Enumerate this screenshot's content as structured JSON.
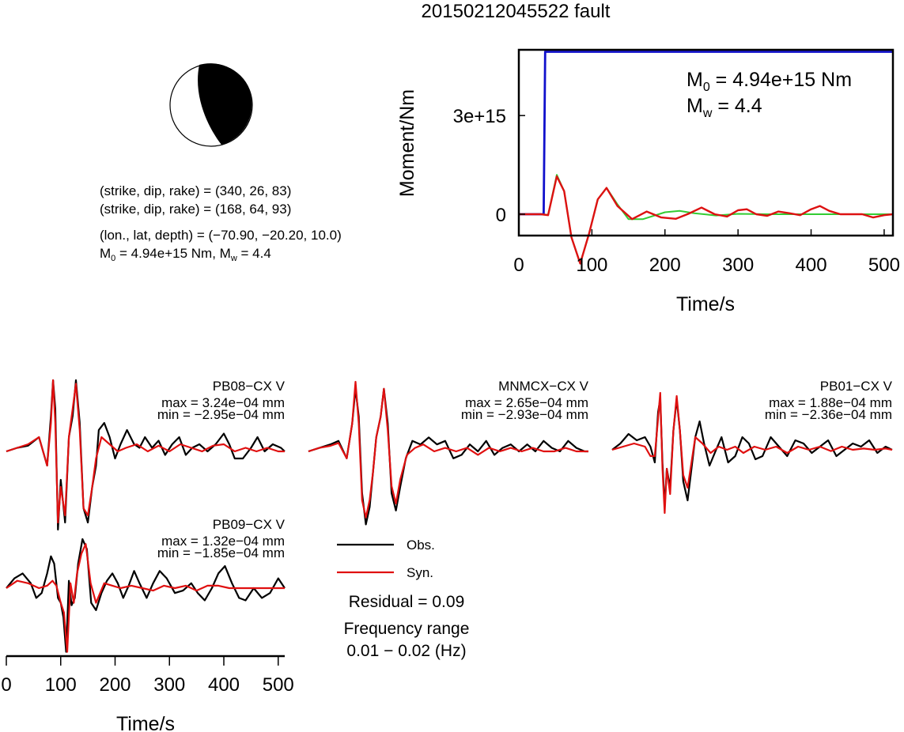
{
  "title": "20150212045522 fault",
  "mechanism": {
    "line1": "(strike, dip, rake) = (340, 26, 83)",
    "line2": "(strike, dip, rake) = (168, 64, 93)",
    "line3": "(lon., lat, depth) = (−70.90, −20.20, 10.0)",
    "m0_label": "M",
    "m0_sub": "0",
    "m0_rest": " = 4.94e+15 Nm, M",
    "mw_sub": "w",
    "mw_rest": " = 4.4"
  },
  "moment_plot": {
    "ylabel": "Moment/Nm",
    "xlabel": "Time/s",
    "m0_M": "M",
    "m0_sub": "0",
    "m0_rest": " = 4.94e+15 Nm",
    "mw_M": "M",
    "mw_sub": "w",
    "mw_rest": " = 4.4",
    "xticks": [
      "0",
      "100",
      "200",
      "300",
      "400",
      "500"
    ],
    "yticks": [
      "0",
      "3e+15"
    ]
  },
  "legend": {
    "obs": "Obs.",
    "syn": "Syn."
  },
  "residual": "Residual = 0.09",
  "frequency_title": "Frequency range",
  "frequency_value": "0.01 − 0.02 (Hz)",
  "wave_axis": {
    "xlabel": "Time/s",
    "xticks": [
      "0",
      "100",
      "200",
      "300",
      "400",
      "500"
    ]
  },
  "stations": [
    {
      "name": "PB08−CX V",
      "max": "max = 3.24e−04 mm",
      "min": "min = −2.95e−04 mm"
    },
    {
      "name": "MNMCX−CX V",
      "max": "max = 2.65e−04 mm",
      "min": "min = −2.93e−04 mm"
    },
    {
      "name": "PB01−CX V",
      "max": "max = 1.88e−04 mm",
      "min": "min = −2.36e−04 mm"
    },
    {
      "name": "PB09−CX V",
      "max": "max = 1.32e−04 mm",
      "min": "min = −1.85e−04 mm"
    }
  ],
  "chart_data": [
    {
      "type": "line",
      "title": "20150212045522 fault",
      "xlabel": "Time/s",
      "ylabel": "Moment/Nm",
      "xlim": [
        0,
        512
      ],
      "ylim": [
        -650000000000000.0,
        5000000000000000.0
      ],
      "series": [
        {
          "color": "#1010cc",
          "x": [
            0,
            34,
            36,
            512
          ],
          "y": [
            0,
            0,
            4940000000000000.0,
            4940000000000000.0
          ]
        },
        {
          "color": "#33cc33",
          "x": [
            0,
            30,
            40,
            52,
            62,
            72,
            84,
            96,
            108,
            120,
            135,
            150,
            170,
            200,
            220,
            240,
            270,
            300,
            340,
            400,
            512
          ],
          "y": [
            0,
            0,
            -20000000000000.0,
            1200000000000000.0,
            700000000000000.0,
            -700000000000000.0,
            -1500000000000000.0,
            -600000000000000.0,
            450000000000000.0,
            800000000000000.0,
            300000000000000.0,
            -150000000000000.0,
            -150000000000000.0,
            60000000000000.0,
            100000000000000.0,
            30000000000000.0,
            -40000000000000.0,
            10000000000000.0,
            0,
            0,
            0
          ]
        },
        {
          "color": "#dd1111",
          "x": [
            0,
            30,
            40,
            52,
            62,
            72,
            84,
            96,
            108,
            120,
            135,
            155,
            175,
            195,
            215,
            232,
            250,
            268,
            285,
            300,
            312,
            325,
            340,
            355,
            370,
            385,
            400,
            412,
            425,
            440,
            455,
            470,
            485,
            500,
            512
          ],
          "y": [
            0,
            0,
            -30000000000000.0,
            1150000000000000.0,
            700000000000000.0,
            -700000000000000.0,
            -1500000000000000.0,
            -600000000000000.0,
            450000000000000.0,
            800000000000000.0,
            250000000000000.0,
            -150000000000000.0,
            80000000000000.0,
            -100000000000000.0,
            -140000000000000.0,
            10000000000000.0,
            200000000000000.0,
            0,
            -70000000000000.0,
            120000000000000.0,
            150000000000000.0,
            0,
            -50000000000000.0,
            80000000000000.0,
            30000000000000.0,
            -30000000000000.0,
            150000000000000.0,
            250000000000000.0,
            100000000000000.0,
            0,
            0,
            0,
            -100000000000000.0,
            -30000000000000.0,
            0
          ]
        }
      ]
    },
    {
      "type": "line",
      "name": "PB08−CX V",
      "xlim": [
        0,
        512
      ],
      "obs": {
        "x": [
          0,
          20,
          40,
          60,
          75,
          82,
          86,
          90,
          95,
          100,
          108,
          115,
          122,
          128,
          135,
          142,
          150,
          158,
          165,
          170,
          180,
          190,
          200,
          210,
          222,
          235,
          245,
          255,
          268,
          280,
          292,
          305,
          318,
          330,
          342,
          355,
          370,
          385,
          400,
          410,
          420,
          435,
          450,
          462,
          475,
          490,
          505,
          512
        ],
        "y": [
          0,
          0.05,
          0.08,
          0.2,
          -0.2,
          0.5,
          1.0,
          0.6,
          -1.1,
          -0.4,
          -1.0,
          0.2,
          0.5,
          1.0,
          0.4,
          -0.8,
          -1.0,
          -0.5,
          -0.2,
          0.3,
          0.4,
          0.2,
          -0.1,
          0.1,
          0.3,
          0.1,
          0.05,
          0.2,
          0.05,
          0.15,
          -0.05,
          0.1,
          0.2,
          -0.05,
          0.05,
          0.1,
          0.0,
          0.1,
          0.25,
          0.1,
          -0.1,
          -0.1,
          0.05,
          0.2,
          0.0,
          0.1,
          0.05,
          0.0
        ]
      },
      "syn": {
        "x": [
          0,
          20,
          40,
          60,
          75,
          82,
          86,
          90,
          95,
          100,
          108,
          115,
          122,
          128,
          135,
          142,
          150,
          158,
          165,
          175,
          190,
          205,
          220,
          240,
          260,
          280,
          300,
          320,
          340,
          360,
          380,
          400,
          420,
          440,
          460,
          480,
          500,
          512
        ],
        "y": [
          0,
          0.05,
          0.1,
          0.2,
          -0.2,
          0.4,
          1.0,
          0.4,
          -1.0,
          -0.5,
          -0.9,
          0.2,
          0.6,
          0.95,
          0.3,
          -0.8,
          -0.9,
          -0.5,
          -0.1,
          0.2,
          0.1,
          0.0,
          0.05,
          0.1,
          0.0,
          0.08,
          0.0,
          0.1,
          0.05,
          0.0,
          0.08,
          0.1,
          0.0,
          0.05,
          0.0,
          0.05,
          0.0,
          0.0
        ]
      }
    },
    {
      "type": "line",
      "name": "MNMCX−CX V",
      "xlim": [
        0,
        512
      ],
      "obs": {
        "x": [
          0,
          20,
          40,
          55,
          70,
          80,
          86,
          92,
          98,
          105,
          112,
          118,
          124,
          132,
          138,
          145,
          152,
          160,
          168,
          178,
          190,
          205,
          220,
          235,
          250,
          265,
          280,
          295,
          310,
          325,
          340,
          355,
          370,
          385,
          400,
          415,
          430,
          445,
          460,
          475,
          490,
          505,
          512
        ],
        "y": [
          0,
          0.05,
          0.1,
          0.15,
          -0.1,
          0.4,
          0.9,
          0.5,
          -0.6,
          -1.05,
          -0.8,
          -0.3,
          0.2,
          0.5,
          0.9,
          0.4,
          -0.6,
          -0.85,
          -0.5,
          -0.1,
          0.15,
          0.1,
          0.2,
          0.1,
          0.15,
          -0.1,
          -0.05,
          0.1,
          0.0,
          0.15,
          -0.05,
          0.05,
          0.1,
          0.0,
          0.1,
          0.0,
          0.15,
          0.05,
          0.0,
          0.15,
          0.05,
          0.0,
          0.0
        ]
      },
      "syn": {
        "x": [
          0,
          20,
          40,
          55,
          70,
          80,
          86,
          92,
          98,
          105,
          112,
          118,
          124,
          132,
          138,
          145,
          152,
          160,
          168,
          180,
          195,
          210,
          230,
          250,
          270,
          290,
          310,
          330,
          350,
          370,
          390,
          410,
          430,
          450,
          470,
          490,
          512
        ],
        "y": [
          0,
          0.05,
          0.08,
          0.12,
          -0.1,
          0.4,
          1.0,
          0.4,
          -0.7,
          -0.95,
          -0.7,
          -0.3,
          0.2,
          0.5,
          0.9,
          0.3,
          -0.5,
          -0.75,
          -0.4,
          -0.05,
          0.05,
          0.1,
          0.0,
          0.05,
          0.0,
          0.05,
          -0.05,
          0.05,
          0.0,
          0.05,
          0.0,
          0.05,
          0.0,
          0.0,
          0.05,
          0.0,
          0.0
        ]
      }
    },
    {
      "type": "line",
      "name": "PB01−CX V",
      "xlim": [
        0,
        512
      ],
      "obs": {
        "x": [
          0,
          15,
          30,
          45,
          60,
          70,
          78,
          84,
          88,
          92,
          96,
          100,
          106,
          112,
          118,
          124,
          130,
          138,
          145,
          152,
          160,
          168,
          178,
          190,
          200,
          212,
          225,
          238,
          250,
          262,
          275,
          290,
          305,
          320,
          335,
          350,
          365,
          380,
          395,
          410,
          425,
          440,
          455,
          470,
          485,
          500,
          512
        ],
        "y": [
          0,
          0.1,
          0.25,
          0.15,
          0.2,
          0.05,
          -0.2,
          0.6,
          0.8,
          -0.2,
          -0.9,
          -0.3,
          -0.6,
          0.3,
          0.8,
          0.3,
          -0.5,
          -0.8,
          -0.3,
          0.2,
          0.45,
          0.1,
          -0.25,
          0.0,
          0.2,
          -0.2,
          -0.1,
          0.2,
          0.1,
          -0.15,
          -0.1,
          0.2,
          0.05,
          -0.1,
          0.15,
          0.1,
          -0.05,
          0.05,
          0.15,
          -0.1,
          0.0,
          0.1,
          0.05,
          0.15,
          -0.05,
          0.05,
          0.0
        ]
      },
      "syn": {
        "x": [
          0,
          20,
          40,
          60,
          70,
          78,
          84,
          88,
          92,
          96,
          100,
          106,
          112,
          118,
          124,
          130,
          138,
          145,
          152,
          165,
          180,
          195,
          210,
          225,
          240,
          260,
          280,
          300,
          320,
          340,
          360,
          380,
          400,
          420,
          440,
          460,
          480,
          500,
          512
        ],
        "y": [
          0,
          0.05,
          0.1,
          0.05,
          -0.1,
          -0.1,
          0.5,
          0.9,
          -0.3,
          -1.0,
          -0.3,
          -0.7,
          0.3,
          0.85,
          0.3,
          -0.4,
          -0.6,
          -0.2,
          0.2,
          0.1,
          -0.05,
          0.05,
          0.0,
          0.05,
          -0.05,
          0.05,
          0.0,
          0.05,
          -0.05,
          0.05,
          0.0,
          0.05,
          -0.02,
          0.05,
          0.0,
          0.02,
          0.0,
          0.02,
          0.0
        ]
      }
    },
    {
      "type": "line",
      "name": "PB09−CX V",
      "xlim": [
        0,
        512
      ],
      "obs": {
        "x": [
          0,
          15,
          30,
          45,
          55,
          65,
          75,
          82,
          88,
          95,
          100,
          105,
          110,
          115,
          120,
          126,
          132,
          140,
          148,
          156,
          165,
          175,
          185,
          195,
          205,
          215,
          225,
          235,
          245,
          258,
          270,
          282,
          295,
          310,
          325,
          340,
          352,
          365,
          378,
          390,
          402,
          415,
          428,
          440,
          455,
          470,
          485,
          500,
          512
        ],
        "y": [
          0,
          0.2,
          0.3,
          0.1,
          -0.2,
          -0.1,
          0.3,
          0.65,
          0.5,
          -0.2,
          -0.3,
          -0.6,
          -1.3,
          0.15,
          -0.35,
          -0.2,
          0.5,
          1.0,
          0.8,
          -0.3,
          -0.45,
          -0.1,
          0.15,
          0.3,
          0.1,
          -0.2,
          0.05,
          0.35,
          0.1,
          -0.2,
          0.1,
          0.35,
          0.2,
          -0.1,
          -0.05,
          0.1,
          -0.1,
          -0.25,
          0.0,
          0.3,
          0.45,
          0.1,
          -0.2,
          -0.25,
          0.0,
          -0.2,
          -0.1,
          0.2,
          0.0
        ]
      },
      "syn": {
        "x": [
          0,
          20,
          40,
          60,
          75,
          85,
          92,
          100,
          106,
          112,
          118,
          124,
          130,
          138,
          146,
          155,
          165,
          180,
          195,
          210,
          230,
          250,
          270,
          290,
          310,
          330,
          350,
          370,
          390,
          410,
          430,
          450,
          470,
          490,
          512
        ],
        "y": [
          0,
          0.15,
          0.1,
          0.0,
          0.05,
          0.15,
          0.05,
          -0.3,
          -0.5,
          -1.3,
          0.1,
          -0.3,
          0.3,
          0.7,
          0.9,
          0.1,
          -0.3,
          0.1,
          0.05,
          0.0,
          0.05,
          0.0,
          -0.05,
          0.05,
          0.0,
          0.05,
          -0.05,
          0.05,
          0.05,
          0.0,
          0.0,
          0.0,
          0.0,
          0.0,
          0.0
        ]
      }
    }
  ]
}
